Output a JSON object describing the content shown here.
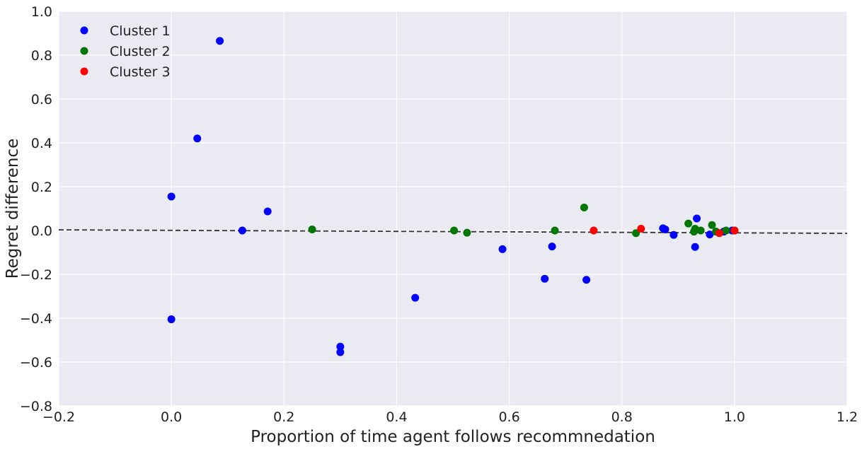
{
  "chart_data": {
    "type": "scatter",
    "xlabel": "Proportion of time agent follows recommnedation",
    "ylabel": "Regret difference",
    "xlim": [
      -0.2,
      1.2
    ],
    "ylim": [
      -0.8,
      1.0
    ],
    "xticks": [
      -0.2,
      0.0,
      0.2,
      0.4,
      0.6,
      0.8,
      1.0,
      1.2
    ],
    "yticks": [
      -0.8,
      -0.6,
      -0.4,
      -0.2,
      0.0,
      0.2,
      0.4,
      0.6,
      0.8,
      1.0
    ],
    "xtick_labels": [
      "−0.2",
      "0.0",
      "0.2",
      "0.4",
      "0.6",
      "0.8",
      "1.0",
      "1.2"
    ],
    "ytick_labels": [
      "−0.8",
      "−0.6",
      "−0.4",
      "−0.2",
      "0.0",
      "0.2",
      "0.4",
      "0.6",
      "0.8",
      "1.0"
    ],
    "grid": true,
    "legend_position": "top-left",
    "background": "#eaeaf2",
    "series": [
      {
        "name": "Cluster 1",
        "color": "#0000ff",
        "points": [
          [
            0.0,
            0.155
          ],
          [
            0.0,
            -0.405
          ],
          [
            0.046,
            0.42
          ],
          [
            0.086,
            0.865
          ],
          [
            0.126,
            0.0
          ],
          [
            0.171,
            0.087
          ],
          [
            0.3,
            -0.53
          ],
          [
            0.3,
            -0.555
          ],
          [
            0.433,
            -0.307
          ],
          [
            0.588,
            -0.085
          ],
          [
            0.663,
            -0.22
          ],
          [
            0.676,
            -0.073
          ],
          [
            0.737,
            -0.225
          ],
          [
            0.873,
            0.01
          ],
          [
            0.877,
            0.005
          ],
          [
            0.892,
            -0.02
          ],
          [
            0.93,
            -0.075
          ],
          [
            0.933,
            0.055
          ],
          [
            0.956,
            -0.018
          ],
          [
            0.981,
            -0.005
          ],
          [
            0.996,
            0.0
          ],
          [
            1.0,
            0.0
          ]
        ]
      },
      {
        "name": "Cluster 2",
        "color": "#007700",
        "points": [
          [
            0.25,
            0.005
          ],
          [
            0.502,
            0.0
          ],
          [
            0.525,
            -0.01
          ],
          [
            0.681,
            0.0
          ],
          [
            0.733,
            0.105
          ],
          [
            0.825,
            -0.012
          ],
          [
            0.918,
            0.032
          ],
          [
            0.928,
            -0.005
          ],
          [
            0.93,
            0.008
          ],
          [
            0.94,
            0.0
          ],
          [
            0.96,
            0.025
          ],
          [
            0.967,
            -0.005
          ],
          [
            0.985,
            0.0
          ],
          [
            1.0,
            0.0
          ]
        ]
      },
      {
        "name": "Cluster 3",
        "color": "#ff0000",
        "points": [
          [
            0.75,
            0.0
          ],
          [
            0.834,
            0.008
          ],
          [
            0.973,
            -0.012
          ],
          [
            1.0,
            0.0
          ]
        ]
      }
    ],
    "trend_line": {
      "from": [
        -0.2,
        0.003
      ],
      "to": [
        1.2,
        -0.013
      ],
      "color": "#333333",
      "style": "dashed"
    }
  }
}
